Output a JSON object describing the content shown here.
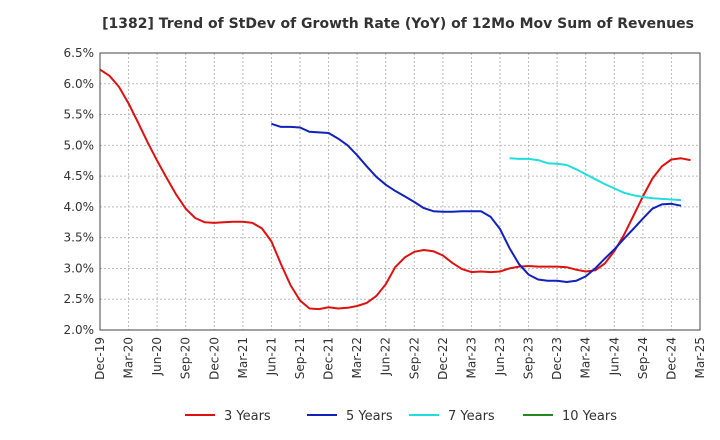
{
  "chart_data": {
    "type": "line",
    "title": "[1382]  Trend of StDev of Growth Rate (YoY) of 12Mo Mov Sum of Revenues",
    "xlabel": "",
    "ylabel": "",
    "ylim": [
      2.0,
      6.5
    ],
    "y_ticks": [
      "6.5%",
      "6.0%",
      "5.5%",
      "5.0%",
      "4.5%",
      "4.0%",
      "3.5%",
      "3.0%",
      "2.5%",
      "2.0%"
    ],
    "x_ticks": [
      "Dec-19",
      "Mar-20",
      "Jun-20",
      "Sep-20",
      "Dec-20",
      "Mar-21",
      "Jun-21",
      "Sep-21",
      "Dec-21",
      "Mar-22",
      "Jun-22",
      "Sep-22",
      "Dec-22",
      "Mar-23",
      "Jun-23",
      "Sep-23",
      "Dec-23",
      "Mar-24",
      "Jun-24",
      "Sep-24",
      "Dec-24",
      "Mar-25"
    ],
    "x_range_months": [
      0,
      63
    ],
    "grid": true,
    "legend_position": "bottom",
    "series": [
      {
        "name": "3 Years",
        "color": "#dd1111",
        "start_month": 0,
        "values": [
          6.23,
          6.13,
          5.95,
          5.68,
          5.37,
          5.05,
          4.75,
          4.47,
          4.2,
          3.97,
          3.82,
          3.75,
          3.74,
          3.75,
          3.76,
          3.76,
          3.74,
          3.65,
          3.44,
          3.07,
          2.73,
          2.48,
          2.35,
          2.34,
          2.37,
          2.35,
          2.36,
          2.39,
          2.44,
          2.55,
          2.74,
          3.02,
          3.18,
          3.27,
          3.3,
          3.28,
          3.21,
          3.09,
          2.99,
          2.94,
          2.95,
          2.94,
          2.95,
          3.0,
          3.03,
          3.04,
          3.03,
          3.03,
          3.03,
          3.02,
          2.98,
          2.95,
          2.97,
          3.08,
          3.28,
          3.54,
          3.85,
          4.17,
          4.46,
          4.66,
          4.77,
          4.79,
          4.76
        ]
      },
      {
        "name": "5 Years",
        "color": "#1122bb",
        "start_month": 18,
        "values": [
          5.35,
          5.3,
          5.3,
          5.29,
          5.22,
          5.21,
          5.2,
          5.11,
          5.0,
          4.84,
          4.66,
          4.49,
          4.36,
          4.26,
          4.17,
          4.08,
          3.98,
          3.93,
          3.92,
          3.92,
          3.93,
          3.93,
          3.93,
          3.84,
          3.64,
          3.33,
          3.07,
          2.9,
          2.82,
          2.8,
          2.8,
          2.78,
          2.8,
          2.87,
          3.0,
          3.16,
          3.31,
          3.48,
          3.64,
          3.81,
          3.97,
          4.04,
          4.05,
          4.02
        ]
      },
      {
        "name": "7 Years",
        "color": "#22dddd",
        "start_month": 43,
        "values": [
          4.79,
          4.78,
          4.78,
          4.76,
          4.71,
          4.7,
          4.68,
          4.61,
          4.53,
          4.45,
          4.37,
          4.3,
          4.23,
          4.19,
          4.16,
          4.14,
          4.13,
          4.12,
          4.11
        ]
      },
      {
        "name": "10 Years",
        "color": "#228822",
        "start_month": 0,
        "values": []
      }
    ]
  }
}
